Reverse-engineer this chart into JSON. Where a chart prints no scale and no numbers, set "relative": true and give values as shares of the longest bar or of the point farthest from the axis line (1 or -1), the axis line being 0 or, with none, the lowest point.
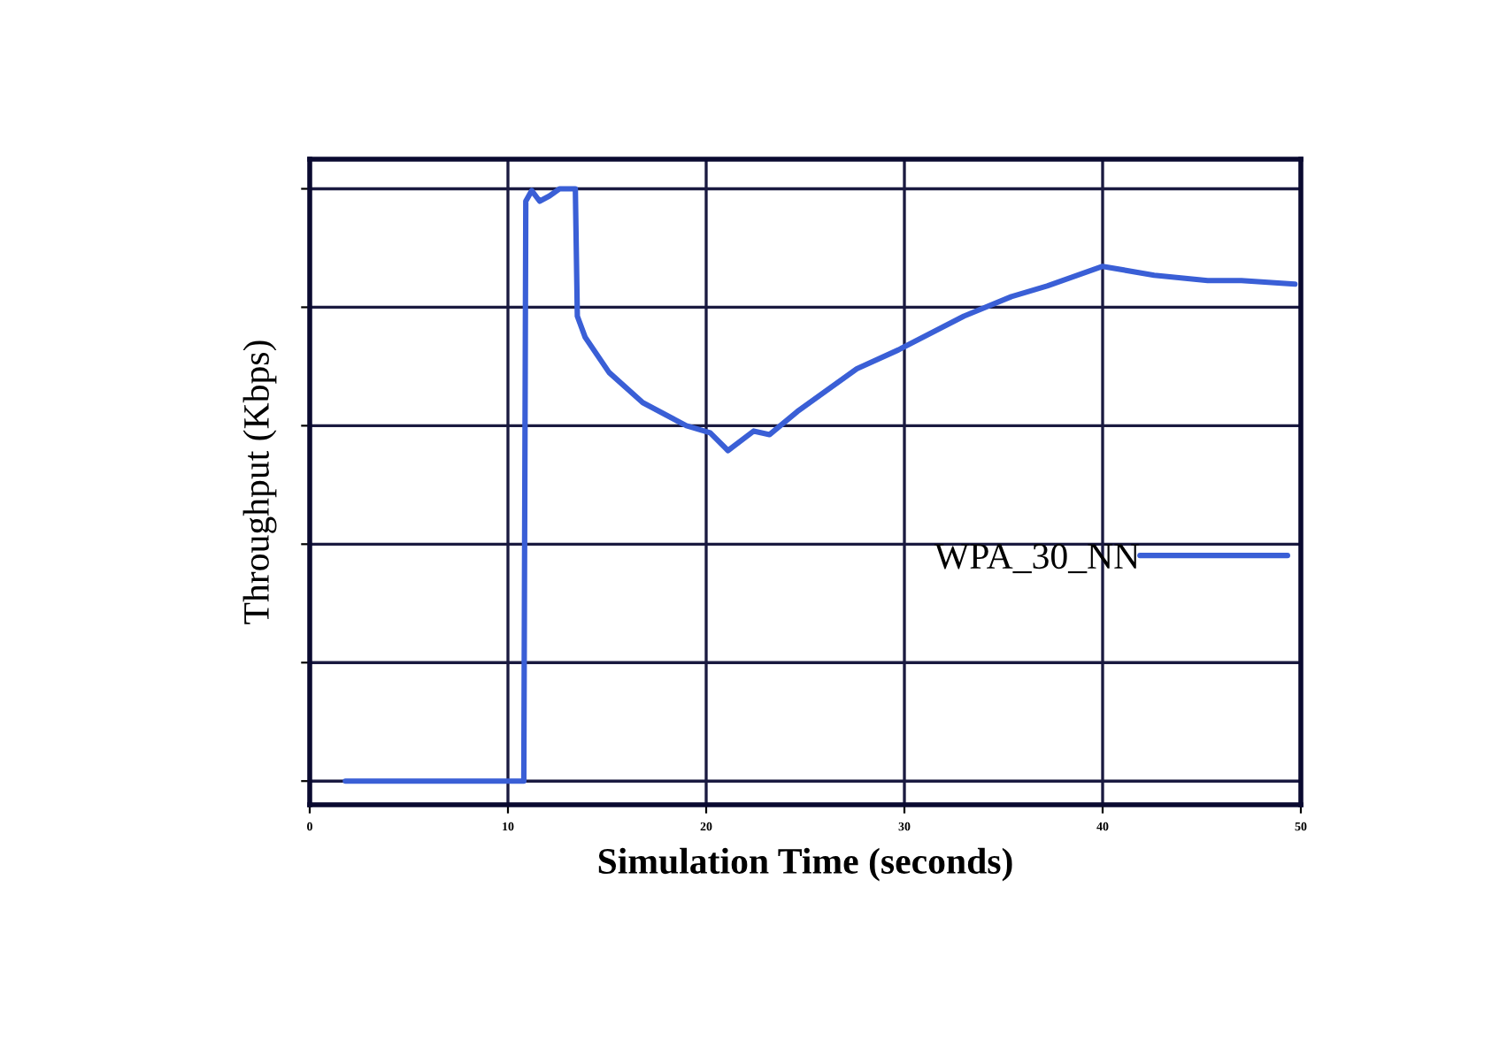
{
  "chart_data": {
    "type": "line",
    "xlabel": "Simulation Time (seconds)",
    "ylabel": "Throughput (Kbps)",
    "relative": true,
    "xlim": [
      0,
      50
    ],
    "xticks": [
      0,
      10,
      20,
      30,
      40,
      50
    ],
    "grid": true,
    "legend": "right",
    "series": [
      {
        "name": "WPA_30_NN",
        "color": "#3a5fd6",
        "x": [
          1.8,
          10.3,
          10.8,
          10.9,
          11.2,
          11.6,
          12.1,
          12.6,
          13.4,
          13.5,
          13.9,
          15.1,
          16.8,
          19.0,
          20.2,
          21.1,
          22.4,
          23.2,
          24.6,
          27.6,
          29.7,
          33.0,
          35.4,
          37.2,
          40.0,
          42.6,
          45.3,
          47.0,
          49.7
        ],
        "values": [
          0,
          0,
          0,
          0.979,
          0.997,
          0.979,
          0.988,
          1.0,
          1.0,
          0.785,
          0.749,
          0.69,
          0.639,
          0.6,
          0.588,
          0.558,
          0.591,
          0.585,
          0.624,
          0.696,
          0.728,
          0.785,
          0.818,
          0.836,
          0.869,
          0.854,
          0.845,
          0.845,
          0.839
        ]
      }
    ]
  }
}
